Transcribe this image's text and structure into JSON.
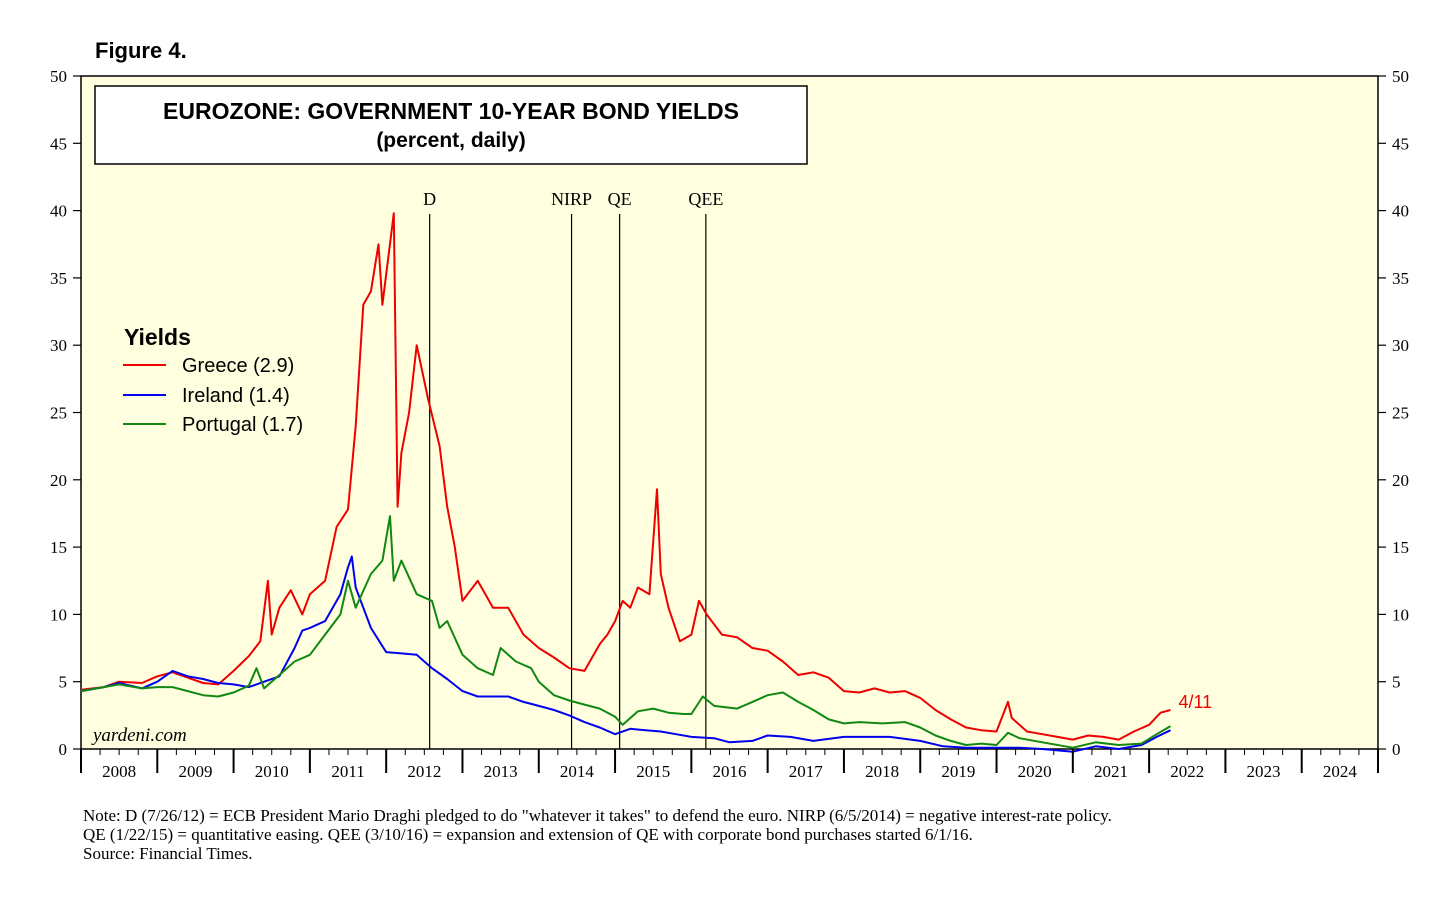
{
  "figure_label": "Figure 4.",
  "notes": [
    "Note: D (7/26/12) = ECB President Mario Draghi pledged to do \"whatever it takes\" to defend the euro. NIRP (6/5/2014) = negative interest-rate policy.",
    "QE (1/22/15) = quantitative easing. QEE (3/10/16) = expansion and extension of QE with corporate bond purchases started 6/1/16.",
    "Source: Financial Times."
  ],
  "watermark": "yardeni.com",
  "colors": {
    "plot_bg": "#ffffe0",
    "greece": "#ee0000",
    "ireland": "#0000ee",
    "portugal": "#118811",
    "annotation": "#ee0000"
  },
  "chart_data": {
    "type": "line",
    "title": "EUROZONE: GOVERNMENT 10-YEAR BOND YIELDS",
    "subtitle": "(percent, daily)",
    "xlabel": "",
    "ylabel": "",
    "xlim": [
      2008.0,
      2025.0
    ],
    "ylim": [
      0,
      50
    ],
    "yticks": [
      0,
      5,
      10,
      15,
      20,
      25,
      30,
      35,
      40,
      45,
      50
    ],
    "year_labels": [
      "2008",
      "2009",
      "2010",
      "2011",
      "2012",
      "2013",
      "2014",
      "2015",
      "2016",
      "2017",
      "2018",
      "2019",
      "2020",
      "2021",
      "2022",
      "2023",
      "2024"
    ],
    "legend": {
      "title": "Yields",
      "position": "top-left",
      "entries": [
        "Greece (2.9)",
        "Ireland (1.4)",
        "Portugal (1.7)"
      ]
    },
    "vlines": [
      {
        "label": "D",
        "x": 2012.57
      },
      {
        "label": "NIRP",
        "x": 2014.43
      },
      {
        "label": "QE",
        "x": 2015.06
      },
      {
        "label": "QEE",
        "x": 2016.19
      }
    ],
    "end_annotation": {
      "text": "4/11",
      "x": 2022.28,
      "y": 2.9
    },
    "series": [
      {
        "name": "Greece",
        "color": "#ee0000",
        "points": [
          [
            2008.0,
            4.4
          ],
          [
            2008.3,
            4.6
          ],
          [
            2008.5,
            5.0
          ],
          [
            2008.8,
            4.9
          ],
          [
            2009.0,
            5.4
          ],
          [
            2009.2,
            5.7
          ],
          [
            2009.4,
            5.3
          ],
          [
            2009.6,
            4.9
          ],
          [
            2009.8,
            4.8
          ],
          [
            2010.0,
            5.8
          ],
          [
            2010.2,
            6.9
          ],
          [
            2010.35,
            8.0
          ],
          [
            2010.45,
            12.5
          ],
          [
            2010.5,
            8.5
          ],
          [
            2010.6,
            10.5
          ],
          [
            2010.75,
            11.8
          ],
          [
            2010.9,
            10.0
          ],
          [
            2011.0,
            11.5
          ],
          [
            2011.2,
            12.5
          ],
          [
            2011.35,
            16.5
          ],
          [
            2011.5,
            17.8
          ],
          [
            2011.6,
            24.0
          ],
          [
            2011.7,
            33.0
          ],
          [
            2011.8,
            34.0
          ],
          [
            2011.9,
            37.5
          ],
          [
            2011.95,
            33.0
          ],
          [
            2012.1,
            39.8
          ],
          [
            2012.15,
            18.0
          ],
          [
            2012.2,
            22.0
          ],
          [
            2012.3,
            25.0
          ],
          [
            2012.4,
            30.0
          ],
          [
            2012.55,
            26.0
          ],
          [
            2012.7,
            22.5
          ],
          [
            2012.8,
            18.0
          ],
          [
            2012.9,
            15.0
          ],
          [
            2013.0,
            11.0
          ],
          [
            2013.2,
            12.5
          ],
          [
            2013.4,
            10.5
          ],
          [
            2013.6,
            10.5
          ],
          [
            2013.8,
            8.5
          ],
          [
            2014.0,
            7.5
          ],
          [
            2014.2,
            6.8
          ],
          [
            2014.4,
            6.0
          ],
          [
            2014.6,
            5.8
          ],
          [
            2014.8,
            7.8
          ],
          [
            2014.9,
            8.5
          ],
          [
            2015.0,
            9.5
          ],
          [
            2015.1,
            11.0
          ],
          [
            2015.2,
            10.5
          ],
          [
            2015.3,
            12.0
          ],
          [
            2015.45,
            11.5
          ],
          [
            2015.55,
            19.3
          ],
          [
            2015.6,
            13.0
          ],
          [
            2015.7,
            10.5
          ],
          [
            2015.85,
            8.0
          ],
          [
            2016.0,
            8.5
          ],
          [
            2016.1,
            11.0
          ],
          [
            2016.2,
            10.0
          ],
          [
            2016.4,
            8.5
          ],
          [
            2016.6,
            8.3
          ],
          [
            2016.8,
            7.5
          ],
          [
            2017.0,
            7.3
          ],
          [
            2017.2,
            6.5
          ],
          [
            2017.4,
            5.5
          ],
          [
            2017.6,
            5.7
          ],
          [
            2017.8,
            5.3
          ],
          [
            2018.0,
            4.3
          ],
          [
            2018.2,
            4.2
          ],
          [
            2018.4,
            4.5
          ],
          [
            2018.6,
            4.2
          ],
          [
            2018.8,
            4.3
          ],
          [
            2019.0,
            3.8
          ],
          [
            2019.2,
            2.9
          ],
          [
            2019.4,
            2.2
          ],
          [
            2019.6,
            1.6
          ],
          [
            2019.8,
            1.4
          ],
          [
            2020.0,
            1.3
          ],
          [
            2020.15,
            3.5
          ],
          [
            2020.2,
            2.3
          ],
          [
            2020.4,
            1.3
          ],
          [
            2020.6,
            1.1
          ],
          [
            2020.8,
            0.9
          ],
          [
            2021.0,
            0.7
          ],
          [
            2021.2,
            1.0
          ],
          [
            2021.4,
            0.9
          ],
          [
            2021.6,
            0.7
          ],
          [
            2021.8,
            1.3
          ],
          [
            2022.0,
            1.8
          ],
          [
            2022.15,
            2.7
          ],
          [
            2022.28,
            2.9
          ]
        ]
      },
      {
        "name": "Ireland",
        "color": "#0000ee",
        "points": [
          [
            2008.0,
            4.3
          ],
          [
            2008.3,
            4.6
          ],
          [
            2008.5,
            4.9
          ],
          [
            2008.8,
            4.5
          ],
          [
            2009.0,
            5.0
          ],
          [
            2009.2,
            5.8
          ],
          [
            2009.4,
            5.4
          ],
          [
            2009.6,
            5.2
          ],
          [
            2009.8,
            4.9
          ],
          [
            2010.0,
            4.8
          ],
          [
            2010.2,
            4.6
          ],
          [
            2010.4,
            5.0
          ],
          [
            2010.6,
            5.4
          ],
          [
            2010.8,
            7.5
          ],
          [
            2010.9,
            8.8
          ],
          [
            2011.0,
            9.0
          ],
          [
            2011.2,
            9.5
          ],
          [
            2011.4,
            11.5
          ],
          [
            2011.5,
            13.5
          ],
          [
            2011.55,
            14.3
          ],
          [
            2011.6,
            12.0
          ],
          [
            2011.8,
            9.0
          ],
          [
            2012.0,
            7.2
          ],
          [
            2012.2,
            7.1
          ],
          [
            2012.4,
            7.0
          ],
          [
            2012.6,
            6.0
          ],
          [
            2012.8,
            5.2
          ],
          [
            2013.0,
            4.3
          ],
          [
            2013.2,
            3.9
          ],
          [
            2013.4,
            3.9
          ],
          [
            2013.6,
            3.9
          ],
          [
            2013.8,
            3.5
          ],
          [
            2014.0,
            3.2
          ],
          [
            2014.2,
            2.9
          ],
          [
            2014.4,
            2.5
          ],
          [
            2014.6,
            2.0
          ],
          [
            2014.8,
            1.6
          ],
          [
            2015.0,
            1.1
          ],
          [
            2015.2,
            1.5
          ],
          [
            2015.4,
            1.4
          ],
          [
            2015.6,
            1.3
          ],
          [
            2015.8,
            1.1
          ],
          [
            2016.0,
            0.9
          ],
          [
            2016.3,
            0.8
          ],
          [
            2016.5,
            0.5
          ],
          [
            2016.8,
            0.6
          ],
          [
            2017.0,
            1.0
          ],
          [
            2017.3,
            0.9
          ],
          [
            2017.6,
            0.6
          ],
          [
            2018.0,
            0.9
          ],
          [
            2018.3,
            0.9
          ],
          [
            2018.6,
            0.9
          ],
          [
            2019.0,
            0.6
          ],
          [
            2019.3,
            0.2
          ],
          [
            2019.6,
            0.1
          ],
          [
            2020.0,
            0.1
          ],
          [
            2020.3,
            0.1
          ],
          [
            2020.6,
            0.0
          ],
          [
            2021.0,
            -0.2
          ],
          [
            2021.3,
            0.2
          ],
          [
            2021.6,
            0.0
          ],
          [
            2021.9,
            0.3
          ],
          [
            2022.1,
            0.9
          ],
          [
            2022.28,
            1.4
          ]
        ]
      },
      {
        "name": "Portugal",
        "color": "#118811",
        "points": [
          [
            2008.0,
            4.3
          ],
          [
            2008.3,
            4.6
          ],
          [
            2008.5,
            4.8
          ],
          [
            2008.8,
            4.5
          ],
          [
            2009.0,
            4.6
          ],
          [
            2009.2,
            4.6
          ],
          [
            2009.4,
            4.3
          ],
          [
            2009.6,
            4.0
          ],
          [
            2009.8,
            3.9
          ],
          [
            2010.0,
            4.2
          ],
          [
            2010.2,
            4.7
          ],
          [
            2010.3,
            6.0
          ],
          [
            2010.4,
            4.5
          ],
          [
            2010.6,
            5.5
          ],
          [
            2010.8,
            6.5
          ],
          [
            2011.0,
            7.0
          ],
          [
            2011.2,
            8.5
          ],
          [
            2011.4,
            10.0
          ],
          [
            2011.5,
            12.5
          ],
          [
            2011.6,
            10.5
          ],
          [
            2011.8,
            13.0
          ],
          [
            2011.95,
            14.0
          ],
          [
            2012.05,
            17.3
          ],
          [
            2012.1,
            12.5
          ],
          [
            2012.2,
            14.0
          ],
          [
            2012.4,
            11.5
          ],
          [
            2012.6,
            11.0
          ],
          [
            2012.7,
            9.0
          ],
          [
            2012.8,
            9.5
          ],
          [
            2013.0,
            7.0
          ],
          [
            2013.2,
            6.0
          ],
          [
            2013.4,
            5.5
          ],
          [
            2013.5,
            7.5
          ],
          [
            2013.7,
            6.5
          ],
          [
            2013.9,
            6.0
          ],
          [
            2014.0,
            5.0
          ],
          [
            2014.2,
            4.0
          ],
          [
            2014.4,
            3.6
          ],
          [
            2014.6,
            3.3
          ],
          [
            2014.8,
            3.0
          ],
          [
            2015.0,
            2.4
          ],
          [
            2015.1,
            1.8
          ],
          [
            2015.3,
            2.8
          ],
          [
            2015.5,
            3.0
          ],
          [
            2015.7,
            2.7
          ],
          [
            2015.9,
            2.6
          ],
          [
            2016.0,
            2.6
          ],
          [
            2016.15,
            3.9
          ],
          [
            2016.3,
            3.2
          ],
          [
            2016.6,
            3.0
          ],
          [
            2016.8,
            3.5
          ],
          [
            2017.0,
            4.0
          ],
          [
            2017.2,
            4.2
          ],
          [
            2017.4,
            3.5
          ],
          [
            2017.6,
            2.9
          ],
          [
            2017.8,
            2.2
          ],
          [
            2018.0,
            1.9
          ],
          [
            2018.2,
            2.0
          ],
          [
            2018.5,
            1.9
          ],
          [
            2018.8,
            2.0
          ],
          [
            2019.0,
            1.6
          ],
          [
            2019.2,
            1.0
          ],
          [
            2019.4,
            0.6
          ],
          [
            2019.6,
            0.3
          ],
          [
            2019.8,
            0.4
          ],
          [
            2020.0,
            0.3
          ],
          [
            2020.15,
            1.2
          ],
          [
            2020.3,
            0.8
          ],
          [
            2020.6,
            0.5
          ],
          [
            2020.9,
            0.2
          ],
          [
            2021.0,
            0.1
          ],
          [
            2021.3,
            0.5
          ],
          [
            2021.6,
            0.3
          ],
          [
            2021.9,
            0.4
          ],
          [
            2022.1,
            1.1
          ],
          [
            2022.28,
            1.7
          ]
        ]
      }
    ]
  }
}
